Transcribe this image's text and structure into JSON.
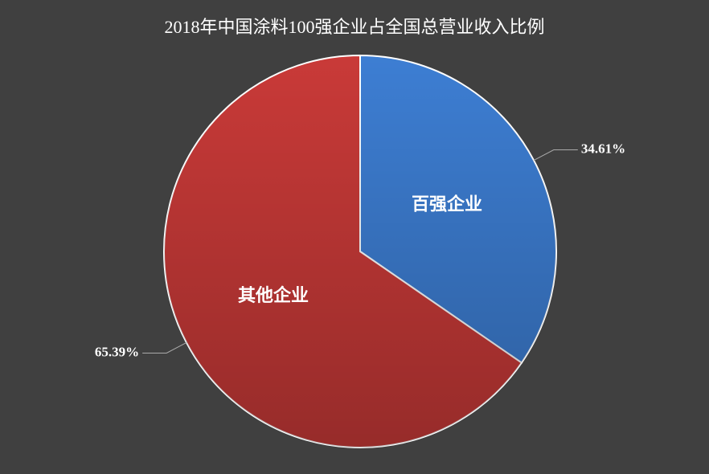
{
  "chart_data": {
    "type": "pie",
    "title": "2018年中国涂料100强企业占全国总营业收入比例",
    "categories": [
      "百强企业",
      "其他企业"
    ],
    "values": [
      34.61,
      65.39
    ],
    "value_labels": [
      "34.61%",
      "65.39%"
    ],
    "colors": [
      "#3d7ed3",
      "#c93a38"
    ]
  }
}
